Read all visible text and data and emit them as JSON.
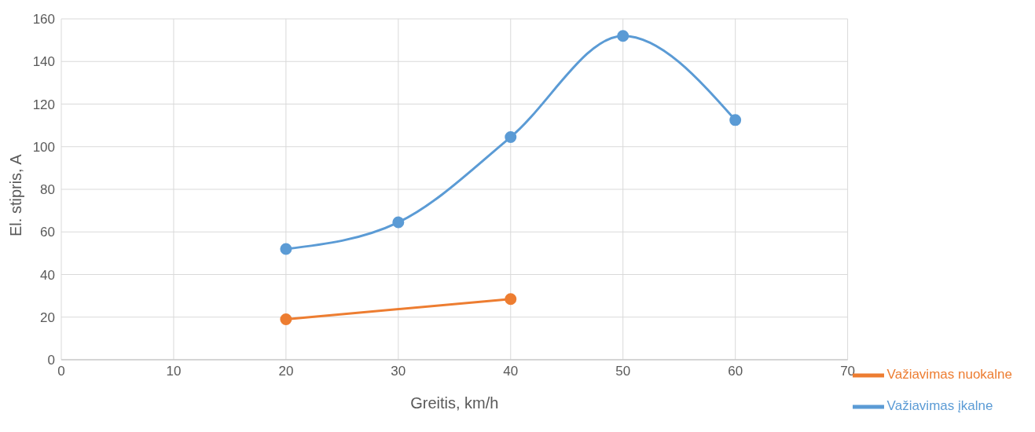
{
  "chart_data": {
    "type": "line",
    "xlabel": "Greitis, km/h",
    "ylabel": "El. stipris, A",
    "xlim": [
      0,
      70
    ],
    "xticks": [
      0,
      10,
      20,
      30,
      40,
      50,
      60,
      70
    ],
    "ylim": [
      0,
      160
    ],
    "yticks": [
      0,
      20,
      40,
      60,
      80,
      100,
      120,
      140,
      160
    ],
    "grid": true,
    "legend": "bottom right",
    "marker": "circle",
    "line_style": "solid",
    "series": [
      {
        "name": "Važiavimas įkalne",
        "color": "#5b9bd5",
        "x": [
          20,
          30,
          40,
          50,
          60
        ],
        "values": [
          52,
          64.5,
          104.5,
          152,
          112.5
        ]
      },
      {
        "name": "Važiavimas nuokalne",
        "color": "#ed7d31",
        "x": [
          20,
          40
        ],
        "values": [
          19,
          28.5
        ]
      }
    ]
  }
}
